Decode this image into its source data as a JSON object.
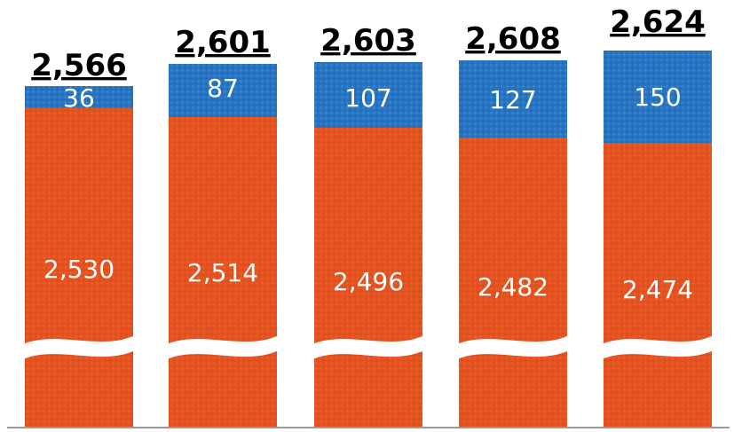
{
  "chart_data": {
    "type": "bar",
    "stacked": true,
    "axis_break": true,
    "categories": [
      "",
      "",
      "",
      "",
      ""
    ],
    "series": [
      {
        "values": [
          2530,
          2514,
          2496,
          2482,
          2474
        ],
        "color": "#e4531f"
      },
      {
        "values": [
          36,
          87,
          107,
          127,
          150
        ],
        "color": "#2775c2"
      }
    ],
    "labels": {
      "bottom": [
        "2,530",
        "2,514",
        "2,496",
        "2,482",
        "2,474"
      ],
      "top": [
        "36",
        "87",
        "107",
        "127",
        "150"
      ],
      "totals": [
        "2,566",
        "2,601",
        "2,603",
        "2,608",
        "2,624"
      ]
    },
    "totals": [
      2566,
      2601,
      2603,
      2608,
      2624
    ],
    "title": "",
    "xlabel": "",
    "ylabel": "",
    "grid": false,
    "legend": "none"
  }
}
